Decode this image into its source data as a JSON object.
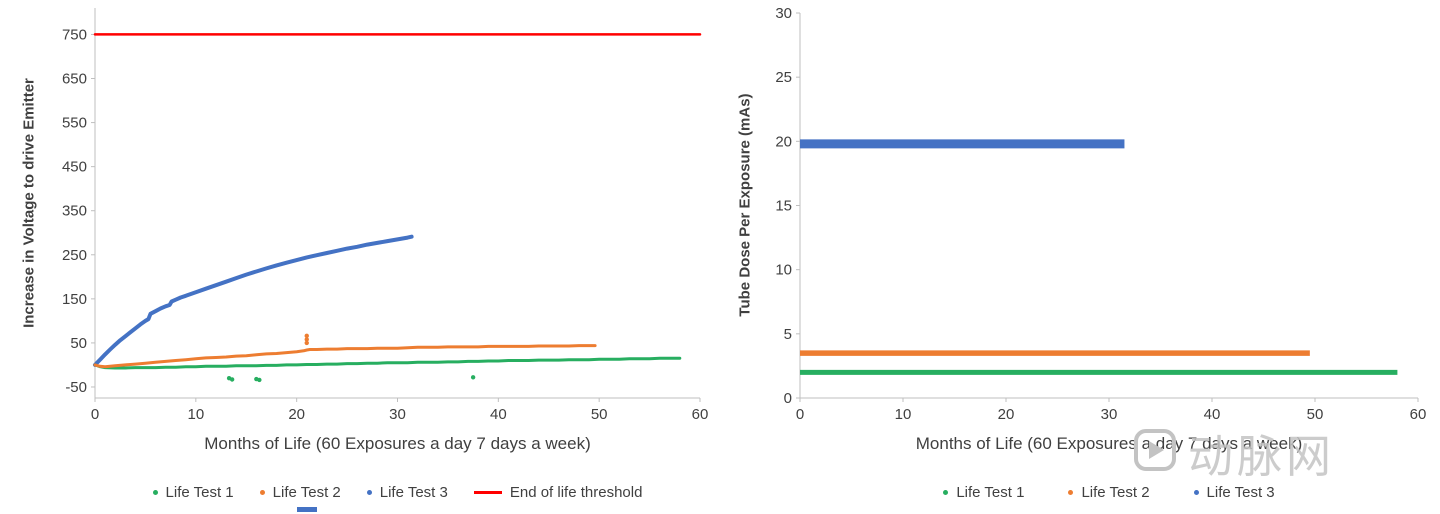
{
  "watermark": {
    "logo_icon": "play-badge-icon",
    "text": "动脉网",
    "color": "#c3c3c3"
  },
  "colors": {
    "axis": "#bfbfbf",
    "tick_label": "#404040",
    "life_test_1": "#27ae60",
    "life_test_2": "#ed7d31",
    "life_test_3": "#4472c4",
    "threshold": "#ff0000"
  },
  "chart_data": [
    {
      "type": "scatter",
      "title": "",
      "xlabel": "Months of Life (60 Exposures a day 7 days a week)",
      "ylabel": "Increase in Voltage to drive Emitter",
      "xlim": [
        0,
        60
      ],
      "ylim": [
        -75,
        810
      ],
      "xticks": [
        0,
        10,
        20,
        30,
        40,
        50,
        60
      ],
      "yticks": [
        -50,
        50,
        150,
        250,
        350,
        450,
        550,
        650,
        750
      ],
      "grid": "off",
      "legend_position": "bottom",
      "legend": [
        {
          "label": "Life Test 1",
          "color": "#27ae60",
          "marker": "dot"
        },
        {
          "label": "Life Test 2",
          "color": "#ed7d31",
          "marker": "dot"
        },
        {
          "label": "Life Test 3",
          "color": "#4472c4",
          "marker": "dot"
        },
        {
          "label": "End of life threshold",
          "color": "#ff0000",
          "marker": "line"
        }
      ],
      "series": [
        {
          "name": "End of life threshold",
          "color": "#ff0000",
          "width": 2.5,
          "points": [
            [
              0,
              750
            ],
            [
              60,
              750
            ]
          ]
        },
        {
          "name": "Life Test 3",
          "color": "#4472c4",
          "width": 4,
          "points": [
            [
              0,
              0
            ],
            [
              0.5,
              12
            ],
            [
              1,
              24
            ],
            [
              1.5,
              35
            ],
            [
              2,
              46
            ],
            [
              2.5,
              56
            ],
            [
              3,
              65
            ],
            [
              3.5,
              74
            ],
            [
              4,
              83
            ],
            [
              4.5,
              92
            ],
            [
              5,
              100
            ],
            [
              5.3,
              104
            ],
            [
              5.5,
              116
            ],
            [
              6,
              122
            ],
            [
              6.5,
              128
            ],
            [
              7,
              133
            ],
            [
              7.4,
              136
            ],
            [
              7.6,
              144
            ],
            [
              8,
              148
            ],
            [
              8.5,
              153
            ],
            [
              9,
              157
            ],
            [
              9.5,
              161
            ],
            [
              10,
              165
            ],
            [
              11,
              173
            ],
            [
              12,
              181
            ],
            [
              13,
              189
            ],
            [
              14,
              197
            ],
            [
              15,
              205
            ],
            [
              16,
              212
            ],
            [
              17,
              219
            ],
            [
              18,
              226
            ],
            [
              19,
              232
            ],
            [
              20,
              238
            ],
            [
              21,
              244
            ],
            [
              22,
              249
            ],
            [
              23,
              254
            ],
            [
              24,
              259
            ],
            [
              25,
              264
            ],
            [
              26,
              268
            ],
            [
              27,
              273
            ],
            [
              28,
              277
            ],
            [
              29,
              281
            ],
            [
              30,
              285
            ],
            [
              31,
              289
            ],
            [
              31.4,
              291
            ]
          ]
        },
        {
          "name": "Life Test 1",
          "color": "#27ae60",
          "width": 3,
          "points": [
            [
              0,
              0
            ],
            [
              0.5,
              -4
            ],
            [
              1,
              -6
            ],
            [
              2,
              -7
            ],
            [
              3,
              -7
            ],
            [
              4,
              -6
            ],
            [
              5,
              -6
            ],
            [
              6,
              -6
            ],
            [
              7,
              -5
            ],
            [
              8,
              -5
            ],
            [
              9,
              -4
            ],
            [
              10,
              -4
            ],
            [
              11,
              -3
            ],
            [
              12,
              -3
            ],
            [
              13,
              -3
            ],
            [
              14,
              -2
            ],
            [
              15,
              -2
            ],
            [
              16,
              -2
            ],
            [
              17,
              -1
            ],
            [
              18,
              -1
            ],
            [
              19,
              0
            ],
            [
              20,
              0
            ],
            [
              21,
              1
            ],
            [
              22,
              1
            ],
            [
              23,
              2
            ],
            [
              24,
              2
            ],
            [
              25,
              3
            ],
            [
              26,
              3
            ],
            [
              27,
              4
            ],
            [
              28,
              4
            ],
            [
              29,
              5
            ],
            [
              30,
              5
            ],
            [
              31,
              5
            ],
            [
              32,
              6
            ],
            [
              33,
              6
            ],
            [
              34,
              6
            ],
            [
              35,
              7
            ],
            [
              36,
              7
            ],
            [
              37,
              8
            ],
            [
              38,
              8
            ],
            [
              39,
              9
            ],
            [
              40,
              9
            ],
            [
              41,
              10
            ],
            [
              42,
              10
            ],
            [
              43,
              10
            ],
            [
              44,
              11
            ],
            [
              45,
              11
            ],
            [
              46,
              11
            ],
            [
              47,
              12
            ],
            [
              48,
              12
            ],
            [
              49,
              12
            ],
            [
              50,
              13
            ],
            [
              51,
              13
            ],
            [
              52,
              13
            ],
            [
              53,
              14
            ],
            [
              54,
              14
            ],
            [
              55,
              14
            ],
            [
              56,
              15
            ],
            [
              57,
              15
            ],
            [
              58,
              15
            ]
          ],
          "outliers": [
            [
              13.3,
              -30
            ],
            [
              13.6,
              -33
            ],
            [
              16,
              -32
            ],
            [
              16.3,
              -34
            ],
            [
              37.5,
              -28
            ]
          ]
        },
        {
          "name": "Life Test 2",
          "color": "#ed7d31",
          "width": 3,
          "points": [
            [
              0,
              0
            ],
            [
              0.5,
              -3
            ],
            [
              1,
              -4
            ],
            [
              1.5,
              -3
            ],
            [
              2,
              -2
            ],
            [
              3,
              0
            ],
            [
              4,
              2
            ],
            [
              5,
              4
            ],
            [
              6,
              6
            ],
            [
              7,
              8
            ],
            [
              8,
              10
            ],
            [
              9,
              12
            ],
            [
              10,
              14
            ],
            [
              11,
              16
            ],
            [
              12,
              17
            ],
            [
              13,
              18
            ],
            [
              14,
              20
            ],
            [
              15,
              21
            ],
            [
              16,
              23
            ],
            [
              17,
              25
            ],
            [
              18,
              26
            ],
            [
              19,
              28
            ],
            [
              20,
              30
            ],
            [
              20.7,
              32
            ],
            [
              21,
              34
            ],
            [
              21.3,
              35
            ],
            [
              22,
              35
            ],
            [
              23,
              36
            ],
            [
              24,
              36
            ],
            [
              25,
              37
            ],
            [
              26,
              37
            ],
            [
              27,
              37
            ],
            [
              28,
              38
            ],
            [
              29,
              38
            ],
            [
              30,
              38
            ],
            [
              31,
              39
            ],
            [
              32,
              40
            ],
            [
              33,
              40
            ],
            [
              34,
              40
            ],
            [
              35,
              41
            ],
            [
              36,
              41
            ],
            [
              37,
              41
            ],
            [
              38,
              41
            ],
            [
              39,
              42
            ],
            [
              40,
              42
            ],
            [
              41,
              42
            ],
            [
              42,
              42
            ],
            [
              43,
              42
            ],
            [
              44,
              43
            ],
            [
              45,
              43
            ],
            [
              46,
              43
            ],
            [
              47,
              43
            ],
            [
              48,
              44
            ],
            [
              49,
              44
            ],
            [
              49.6,
              44
            ]
          ],
          "outliers": [
            [
              21,
              50
            ],
            [
              21,
              58
            ],
            [
              21,
              66
            ]
          ]
        }
      ]
    },
    {
      "type": "line",
      "title": "",
      "xlabel": "Months of Life (60 Exposures a day 7 days a week)",
      "ylabel": "Tube Dose Per Exposure (mAs)",
      "xlim": [
        0,
        60
      ],
      "ylim": [
        0,
        30
      ],
      "xticks": [
        0,
        10,
        20,
        30,
        40,
        50,
        60
      ],
      "yticks": [
        0,
        5,
        10,
        15,
        20,
        25,
        30
      ],
      "grid": "off",
      "legend_position": "bottom",
      "legend": [
        {
          "label": "Life Test 1",
          "color": "#27ae60",
          "marker": "dot"
        },
        {
          "label": "Life Test 2",
          "color": "#ed7d31",
          "marker": "dot"
        },
        {
          "label": "Life Test 3",
          "color": "#4472c4",
          "marker": "dot"
        }
      ],
      "series": [
        {
          "name": "Life Test 3",
          "color": "#4472c4",
          "width": 9,
          "segment": {
            "y": 19.8,
            "x0": 0,
            "x1": 31.5
          }
        },
        {
          "name": "Life Test 2",
          "color": "#ed7d31",
          "width": 5.5,
          "segment": {
            "y": 3.5,
            "x0": 0,
            "x1": 49.5
          }
        },
        {
          "name": "Life Test 1",
          "color": "#27ae60",
          "width": 5,
          "segment": {
            "y": 2,
            "x0": 0,
            "x1": 58
          }
        }
      ]
    }
  ]
}
